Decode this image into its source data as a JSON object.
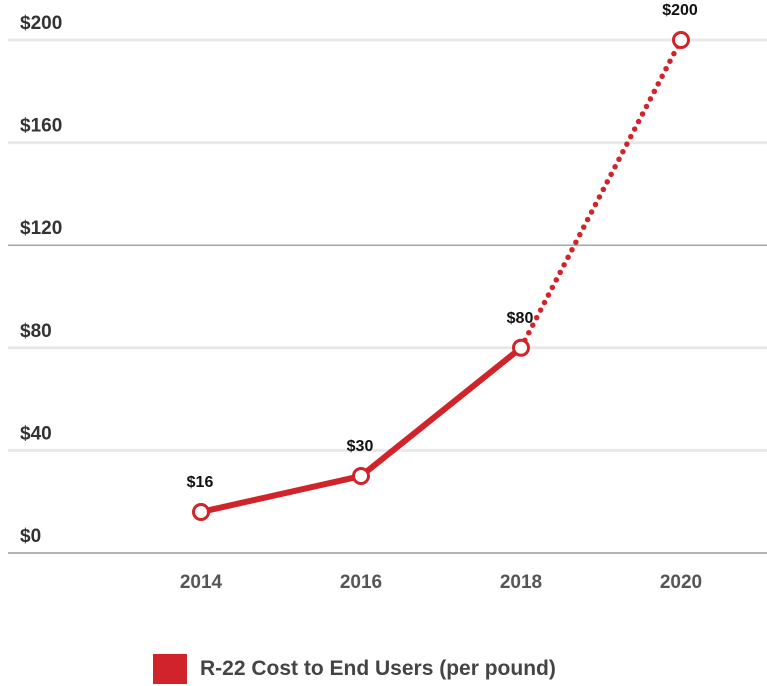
{
  "chart_data": {
    "type": "line",
    "title": "",
    "xlabel": "",
    "ylabel": "",
    "x": [
      "2014",
      "2016",
      "2018",
      "2020"
    ],
    "ylim": [
      0,
      200
    ],
    "y_ticks": [
      "$0",
      "$40",
      "$80",
      "$120",
      "$160",
      "$200"
    ],
    "series": [
      {
        "name": "R-22 Cost to End Users (per pound)",
        "values": [
          16,
          30,
          80,
          200
        ],
        "data_labels": [
          "$16",
          "$30",
          "$80",
          "$200"
        ],
        "segment_styles": [
          "solid",
          "solid",
          "dotted"
        ]
      }
    ],
    "grid": true,
    "legend": "bottom",
    "colors": {
      "series": "#d0232a",
      "grid": "#e8e8e8",
      "axis": "#9a9a9a"
    }
  }
}
